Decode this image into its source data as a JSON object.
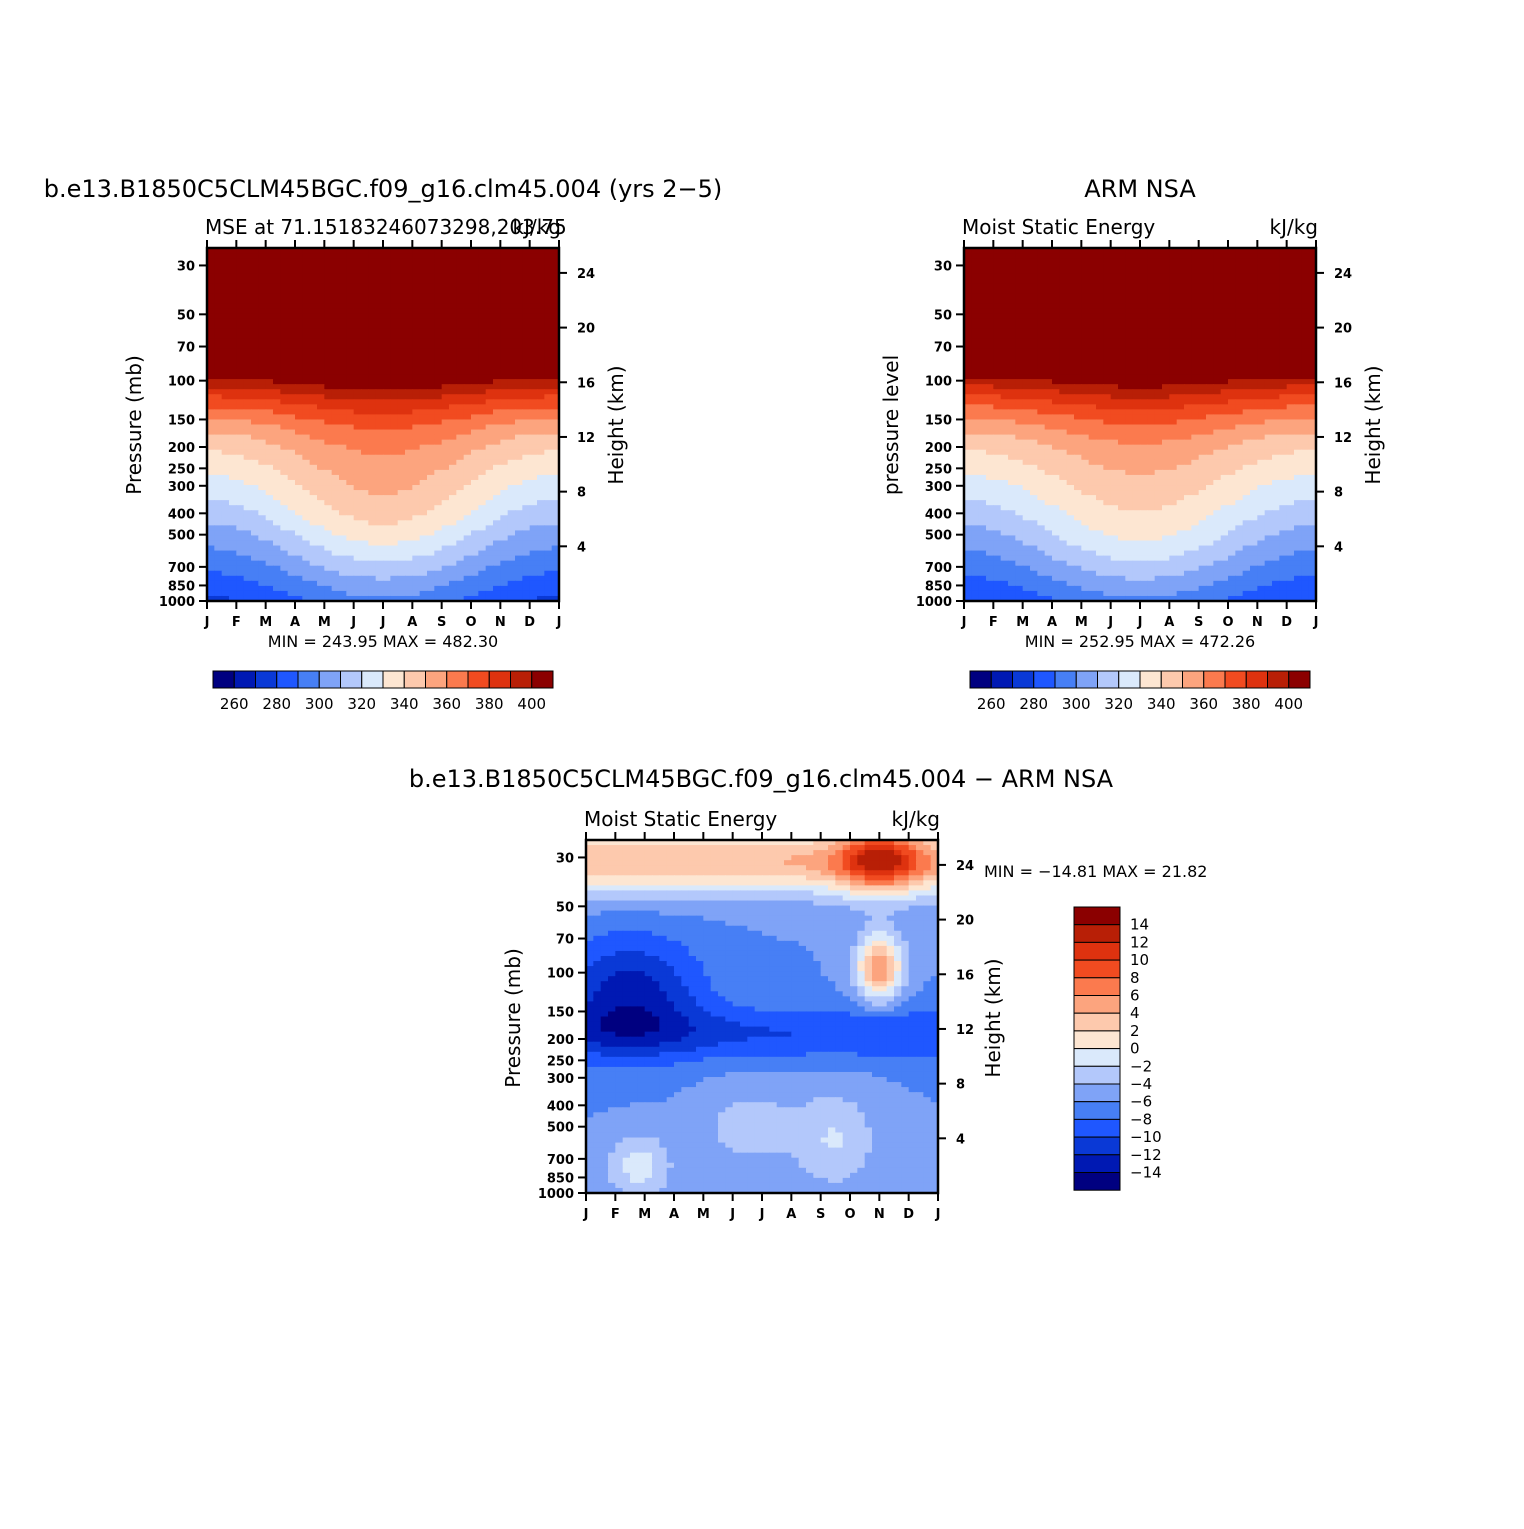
{
  "chart_data": [
    {
      "type": "contour",
      "id": "model",
      "title": "b.e13.B1850C5CLM45BGC.f09_g16.clm45.004 (yrs 2−5)",
      "left_label": "MSE at 71.15183246073298,203.75",
      "right_label": "kJ/kg",
      "ylabel": "Pressure (mb)",
      "ylabel_right": "Height (km)",
      "x_ticks": [
        "J",
        "F",
        "M",
        "A",
        "M",
        "J",
        "J",
        "A",
        "S",
        "O",
        "N",
        "D",
        "J"
      ],
      "y_ticks": [
        30,
        50,
        70,
        100,
        150,
        200,
        250,
        300,
        400,
        500,
        700,
        850,
        1000
      ],
      "y_ticks_right": [
        24,
        20,
        16,
        12,
        8,
        4
      ],
      "ylim": [
        1000,
        25
      ],
      "y_scale": "log",
      "minmax_text": "MIN = 243.95  MAX = 482.30",
      "levels": [
        255,
        260,
        270,
        280,
        290,
        300,
        310,
        320,
        330,
        340,
        350,
        360,
        370,
        380,
        390,
        400
      ],
      "colorbar_labels": [
        "260",
        "280",
        "300",
        "320",
        "340",
        "360",
        "380",
        "400"
      ],
      "colorbar_orientation": "horizontal",
      "grid": false
    },
    {
      "type": "contour",
      "id": "obs",
      "title": "ARM NSA",
      "left_label": "Moist Static Energy",
      "right_label": "kJ/kg",
      "ylabel": "pressure level",
      "ylabel_right": "Height (km)",
      "x_ticks": [
        "J",
        "F",
        "M",
        "A",
        "M",
        "J",
        "J",
        "A",
        "S",
        "O",
        "N",
        "D",
        "J"
      ],
      "y_ticks": [
        30,
        50,
        70,
        100,
        150,
        200,
        250,
        300,
        400,
        500,
        700,
        850,
        1000
      ],
      "y_ticks_right": [
        24,
        20,
        16,
        12,
        8,
        4
      ],
      "ylim": [
        1000,
        25
      ],
      "y_scale": "log",
      "minmax_text": "MIN = 252.95  MAX = 472.26",
      "levels": [
        255,
        260,
        270,
        280,
        290,
        300,
        310,
        320,
        330,
        340,
        350,
        360,
        370,
        380,
        390,
        400
      ],
      "colorbar_labels": [
        "260",
        "280",
        "300",
        "320",
        "340",
        "360",
        "380",
        "400"
      ],
      "colorbar_orientation": "horizontal",
      "grid": false
    },
    {
      "type": "contour",
      "id": "diff",
      "title": "b.e13.B1850C5CLM45BGC.f09_g16.clm45.004 − ARM NSA",
      "left_label": "Moist Static Energy",
      "right_label": "kJ/kg",
      "ylabel": "Pressure (mb)",
      "ylabel_right": "Height (km)",
      "x_ticks": [
        "J",
        "F",
        "M",
        "A",
        "M",
        "J",
        "J",
        "A",
        "S",
        "O",
        "N",
        "D",
        "J"
      ],
      "y_ticks": [
        30,
        50,
        70,
        100,
        150,
        200,
        250,
        300,
        400,
        500,
        700,
        850,
        1000
      ],
      "y_ticks_right": [
        24,
        20,
        16,
        12,
        8,
        4
      ],
      "ylim": [
        1000,
        25
      ],
      "y_scale": "log",
      "minmax_text": "MIN = −14.81  MAX =  21.82",
      "levels": [
        -14,
        -12,
        -10,
        -8,
        -6,
        -4,
        -2,
        0,
        2,
        4,
        6,
        8,
        10,
        12,
        14
      ],
      "colorbar_labels": [
        "14",
        "12",
        "10",
        "8",
        "6",
        "4",
        "2",
        "0",
        "−2",
        "−4",
        "−6",
        "−8",
        "−10",
        "−12",
        "−14"
      ],
      "colorbar_orientation": "vertical",
      "grid": false
    }
  ],
  "colors": {
    "palette16": [
      "#000080",
      "#0019b3",
      "#0a39d6",
      "#1f57ff",
      "#477ff5",
      "#7fa3f7",
      "#b3c8fb",
      "#dae9fb",
      "#fde6d2",
      "#fdc9ad",
      "#fca47e",
      "#fb7a4e",
      "#f14b20",
      "#de320f",
      "#b81f06",
      "#8b0000"
    ],
    "missing": "#ffffff"
  }
}
